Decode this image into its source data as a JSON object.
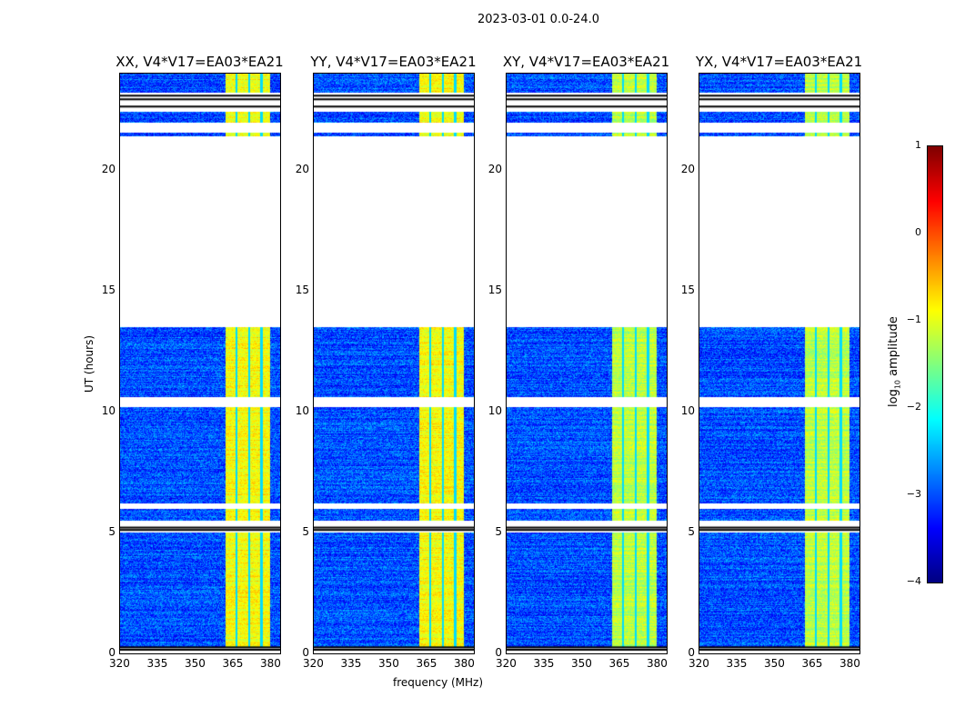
{
  "chart_data": {
    "type": "heatmap",
    "title": "2023-03-01 0.0-24.0",
    "xlabel": "frequency (MHz)",
    "ylabel": "UT (hours)",
    "xlim": [
      320,
      384
    ],
    "ylim": [
      0,
      24
    ],
    "xticks": [
      "320",
      "335",
      "350",
      "365",
      "380"
    ],
    "xtick_values": [
      320,
      335,
      350,
      365,
      380
    ],
    "yticks": [
      "0",
      "5",
      "10",
      "15",
      "20"
    ],
    "ytick_values": [
      0,
      5,
      10,
      15,
      20
    ],
    "panels": [
      {
        "title": "XX, V4*V17=EA03*EA21"
      },
      {
        "title": "YY, V4*V17=EA03*EA21"
      },
      {
        "title": "XY, V4*V17=EA03*EA21"
      },
      {
        "title": "YX, V4*V17=EA03*EA21"
      }
    ],
    "data_time_ranges_hours": [
      [
        0.3,
        5.0
      ],
      [
        5.5,
        6.0
      ],
      [
        6.2,
        10.2
      ],
      [
        10.6,
        13.5
      ],
      [
        21.4,
        21.55
      ],
      [
        21.95,
        22.4
      ],
      [
        23.2,
        24.0
      ]
    ],
    "flagged_black_times_hours": [
      0.15,
      0.25,
      5.1,
      5.2,
      22.6,
      22.9,
      23.05
    ],
    "bright_band_mhz": [
      362,
      380
    ],
    "band_gap_channels_mhz": [
      366.5,
      371.5,
      376.5
    ],
    "background_log10_amplitude": -3,
    "band_log10_amplitude": -1.2,
    "colorbar": {
      "label": "log10 amplitude",
      "label_base": "log",
      "label_sub": "10",
      "label_rest": " amplitude",
      "vmin": -4,
      "vmax": 1,
      "ticks": [
        "1",
        "0",
        "−1",
        "−2",
        "−3",
        "−4"
      ],
      "tick_values": [
        1,
        0,
        -1,
        -2,
        -3,
        -4
      ],
      "colormap": "jet"
    }
  }
}
